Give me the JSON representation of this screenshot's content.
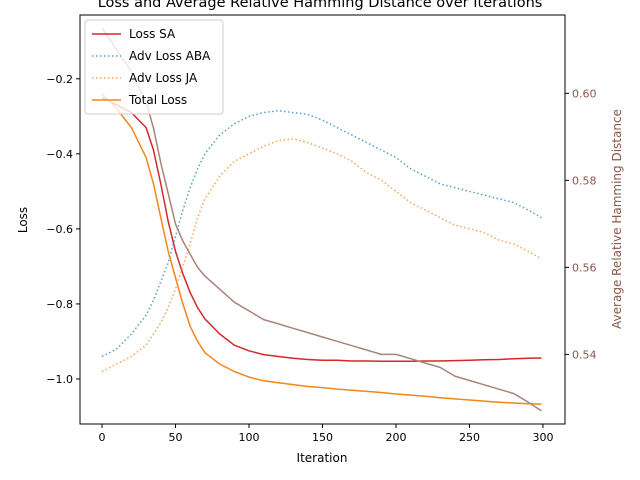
{
  "chart_data": {
    "type": "line",
    "title": "Loss and Average Relative Hamming Distance over Iterations",
    "xlabel": "Iteration",
    "ylabel": "Loss",
    "y2label": "Average Relative Hamming Distance",
    "xlim": [
      -15,
      315
    ],
    "ylim": [
      -1.12,
      -0.03
    ],
    "y2lim": [
      0.524,
      0.618
    ],
    "xticks": [
      0,
      50,
      100,
      150,
      200,
      250,
      300
    ],
    "yticks": [
      -1.0,
      -0.8,
      -0.6,
      -0.4,
      -0.2
    ],
    "y2ticks": [
      0.54,
      0.56,
      0.58,
      0.6
    ],
    "grid": false,
    "legend": "top-left",
    "colors": {
      "loss_sa": "#d62728",
      "adv_aba": "#5a9ec9",
      "adv_ja": "#f6a55a",
      "total": "#f58518",
      "hamming": "#a7857a",
      "y2axis": "#8c564b"
    },
    "x": [
      0,
      10,
      20,
      30,
      35,
      40,
      45,
      50,
      55,
      60,
      65,
      70,
      80,
      90,
      100,
      110,
      120,
      130,
      140,
      150,
      160,
      170,
      180,
      190,
      200,
      210,
      220,
      230,
      240,
      250,
      260,
      270,
      280,
      290,
      299
    ],
    "series": [
      {
        "name": "Loss SA",
        "axis": "left",
        "style": "solid",
        "values": [
          -0.25,
          -0.27,
          -0.29,
          -0.33,
          -0.39,
          -0.48,
          -0.58,
          -0.66,
          -0.72,
          -0.77,
          -0.81,
          -0.84,
          -0.88,
          -0.91,
          -0.925,
          -0.935,
          -0.94,
          -0.945,
          -0.948,
          -0.95,
          -0.95,
          -0.952,
          -0.952,
          -0.953,
          -0.953,
          -0.953,
          -0.952,
          -0.952,
          -0.951,
          -0.95,
          -0.949,
          -0.948,
          -0.946,
          -0.945,
          -0.944
        ]
      },
      {
        "name": "Adv Loss ABA",
        "axis": "left",
        "style": "dotted",
        "values": [
          -0.94,
          -0.92,
          -0.88,
          -0.83,
          -0.79,
          -0.74,
          -0.69,
          -0.62,
          -0.55,
          -0.49,
          -0.44,
          -0.4,
          -0.35,
          -0.32,
          -0.3,
          -0.29,
          -0.285,
          -0.29,
          -0.295,
          -0.31,
          -0.33,
          -0.35,
          -0.37,
          -0.39,
          -0.41,
          -0.44,
          -0.46,
          -0.48,
          -0.49,
          -0.5,
          -0.51,
          -0.52,
          -0.53,
          -0.55,
          -0.57
        ]
      },
      {
        "name": "Adv Loss JA",
        "axis": "left",
        "style": "dotted",
        "values": [
          -0.98,
          -0.96,
          -0.94,
          -0.91,
          -0.88,
          -0.85,
          -0.81,
          -0.76,
          -0.7,
          -0.64,
          -0.57,
          -0.52,
          -0.46,
          -0.42,
          -0.4,
          -0.38,
          -0.365,
          -0.36,
          -0.37,
          -0.385,
          -0.4,
          -0.42,
          -0.45,
          -0.47,
          -0.5,
          -0.53,
          -0.55,
          -0.57,
          -0.59,
          -0.6,
          -0.61,
          -0.63,
          -0.64,
          -0.66,
          -0.68
        ]
      },
      {
        "name": "Total Loss",
        "axis": "left",
        "style": "solid",
        "values": [
          -0.24,
          -0.28,
          -0.33,
          -0.41,
          -0.48,
          -0.57,
          -0.66,
          -0.73,
          -0.8,
          -0.86,
          -0.9,
          -0.93,
          -0.96,
          -0.98,
          -0.995,
          -1.005,
          -1.01,
          -1.015,
          -1.02,
          -1.023,
          -1.027,
          -1.03,
          -1.033,
          -1.036,
          -1.04,
          -1.043,
          -1.046,
          -1.05,
          -1.053,
          -1.056,
          -1.059,
          -1.062,
          -1.064,
          -1.066,
          -1.067
        ]
      },
      {
        "name": "",
        "axis": "right",
        "style": "solid",
        "values": [
          0.615,
          0.61,
          0.605,
          0.598,
          0.592,
          0.584,
          0.577,
          0.57,
          0.566,
          0.563,
          0.56,
          0.558,
          0.555,
          0.552,
          0.55,
          0.548,
          0.547,
          0.546,
          0.545,
          0.544,
          0.543,
          0.542,
          0.541,
          0.54,
          0.54,
          0.539,
          0.538,
          0.537,
          0.535,
          0.534,
          0.533,
          0.532,
          0.531,
          0.529,
          0.527
        ]
      }
    ]
  }
}
